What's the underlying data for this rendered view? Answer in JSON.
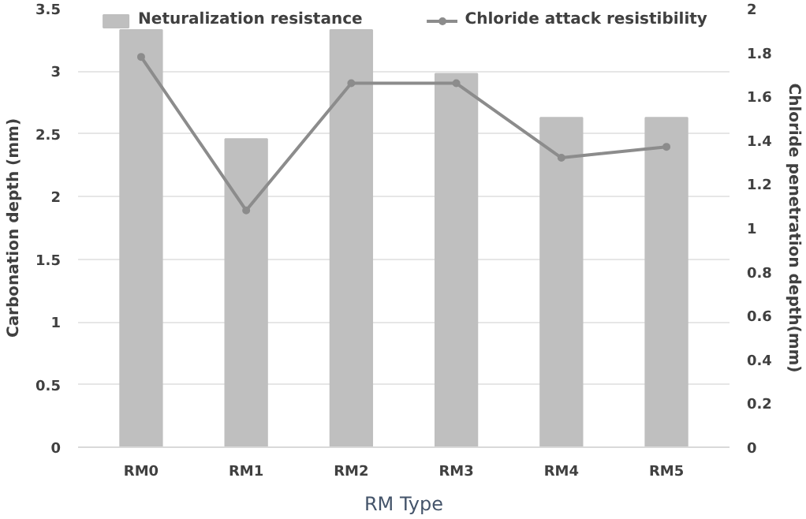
{
  "chart_data": {
    "type": "bar",
    "xlabel": "RM Type",
    "ylabel": "Carbonation depth (mm)",
    "y2label": "Chloride penetration depth(mm)",
    "categories": [
      "RM0",
      "RM1",
      "RM2",
      "RM3",
      "RM4",
      "RM5"
    ],
    "series": [
      {
        "name": "Neturalization resistance",
        "color": "#bfbfbf",
        "values": [
          3.33,
          2.46,
          3.33,
          2.98,
          2.63,
          2.63
        ]
      },
      {
        "name": "Chloride attack resistibility",
        "type": "line",
        "axis": "y2",
        "color": "#8c8c8c",
        "marker": "circle",
        "values": [
          1.78,
          1.08,
          1.66,
          1.66,
          1.32,
          1.37
        ]
      }
    ],
    "ylim": [
      0,
      3.5
    ],
    "yticks": [
      0,
      0.5,
      1,
      1.5,
      2,
      2.5,
      3,
      3.5
    ],
    "y2lim": [
      0,
      2
    ],
    "y2ticks": [
      0,
      0.2,
      0.4,
      0.6,
      0.8,
      1,
      1.2,
      1.4,
      1.6,
      1.8,
      2
    ],
    "grid": "y",
    "legend": "top"
  }
}
